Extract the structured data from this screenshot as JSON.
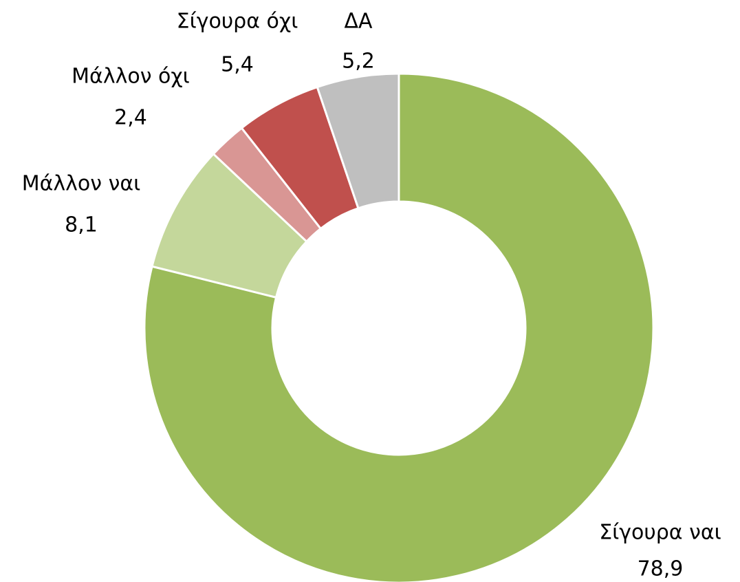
{
  "chart_data": {
    "type": "pie",
    "donut": true,
    "categories": [
      "Σίγουρα ναι",
      "Μάλλον ναι",
      "Μάλλον όχι",
      "Σίγουρα όχι",
      "ΔΑ"
    ],
    "values": [
      78.9,
      8.1,
      2.4,
      5.4,
      5.2
    ],
    "value_labels": [
      "78,9",
      "8,1",
      "2,4",
      "5,4",
      "5,2"
    ],
    "colors": [
      "#9bbb59",
      "#c4d79b",
      "#d99694",
      "#c0504d",
      "#bfbfbf"
    ]
  }
}
